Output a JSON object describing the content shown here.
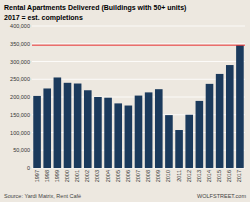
{
  "chart_data": {
    "type": "bar",
    "title": "Rental Apartments Delivered (Buildings with 50+ units)",
    "subtitle": "2017 = est. completions",
    "categories": [
      "1997",
      "1998",
      "1999",
      "2000",
      "2001",
      "2002",
      "2003",
      "2004",
      "2005",
      "2006",
      "2007",
      "2008",
      "2009",
      "2010",
      "2011",
      "2012",
      "2013",
      "2014",
      "2015",
      "2016",
      "2017"
    ],
    "values": [
      203000,
      224000,
      255000,
      240000,
      238000,
      219000,
      200000,
      198000,
      182000,
      176000,
      204000,
      213000,
      222000,
      149000,
      107000,
      150000,
      189000,
      237000,
      265000,
      290000,
      346000
    ],
    "color": "#1b3a5c",
    "reference_lines": [
      {
        "value": 346000,
        "color": "#e83030"
      }
    ],
    "ylim": [
      0,
      400000
    ],
    "yticks": [
      0,
      {
        "value": 50000,
        "label": "50,000"
      },
      {
        "value": 100000,
        "label": "100,000"
      },
      {
        "value": 150000,
        "label": "150,000"
      },
      {
        "value": 200000,
        "label": "200,000"
      },
      {
        "value": 250000,
        "label": "250,000"
      },
      {
        "value": 300000,
        "label": "300,000"
      },
      {
        "value": 350000,
        "label": "350,000"
      },
      {
        "value": 400000,
        "label": "400,000"
      }
    ],
    "grid": true,
    "grid_color": "#ffffff",
    "background_color": "#ede8e0",
    "source": "Source: Yardi Matrix, Rent Café",
    "watermark": "WOLFSTREET.com"
  }
}
